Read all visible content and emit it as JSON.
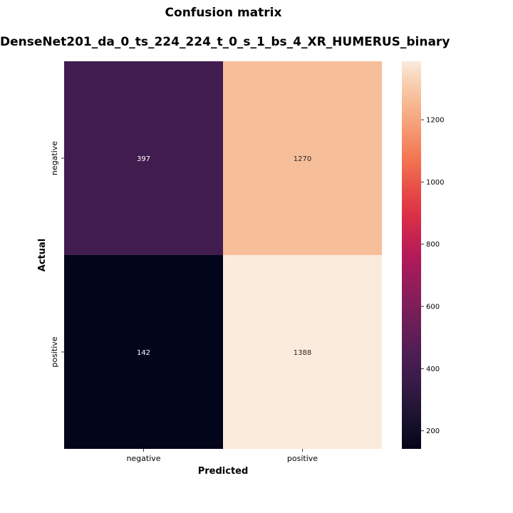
{
  "chart_data": {
    "type": "heatmap",
    "title": "Confusion matrix",
    "subtitle": "DenseNet201_da_0_ts_224_224_t_0_s_1_bs_4_XR_HUMERUS_binary",
    "xlabel": "Predicted",
    "ylabel": "Actual",
    "x_categories": [
      "negative",
      "positive"
    ],
    "y_categories": [
      "negative",
      "positive"
    ],
    "values": [
      [
        397,
        1270
      ],
      [
        142,
        1388
      ]
    ],
    "colorbar": {
      "colormap": "rocket",
      "range": [
        142,
        1388
      ],
      "ticks": [
        200,
        400,
        600,
        800,
        1000,
        1200
      ]
    }
  }
}
